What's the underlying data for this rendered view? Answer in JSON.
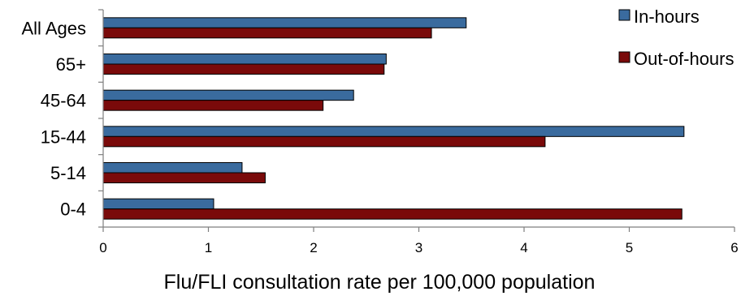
{
  "chart_data": {
    "type": "bar",
    "orientation": "horizontal",
    "categories": [
      "All Ages",
      "65+",
      "45-64",
      "15-44",
      "5-14",
      "0-4"
    ],
    "series": [
      {
        "name": "In-hours",
        "color": "#3a6b9e",
        "values": [
          3.45,
          2.69,
          2.38,
          5.52,
          1.32,
          1.05
        ]
      },
      {
        "name": "Out-of-hours",
        "color": "#7a0a0a",
        "values": [
          3.12,
          2.67,
          2.09,
          4.2,
          1.54,
          5.5
        ]
      }
    ],
    "xlabel": "Flu/FLI consultation rate per 100,000 population",
    "xlim": [
      0,
      6
    ],
    "xticks": [
      "0",
      "1",
      "2",
      "3",
      "4",
      "5",
      "6"
    ],
    "grid": false,
    "legend_position": "top-right"
  }
}
